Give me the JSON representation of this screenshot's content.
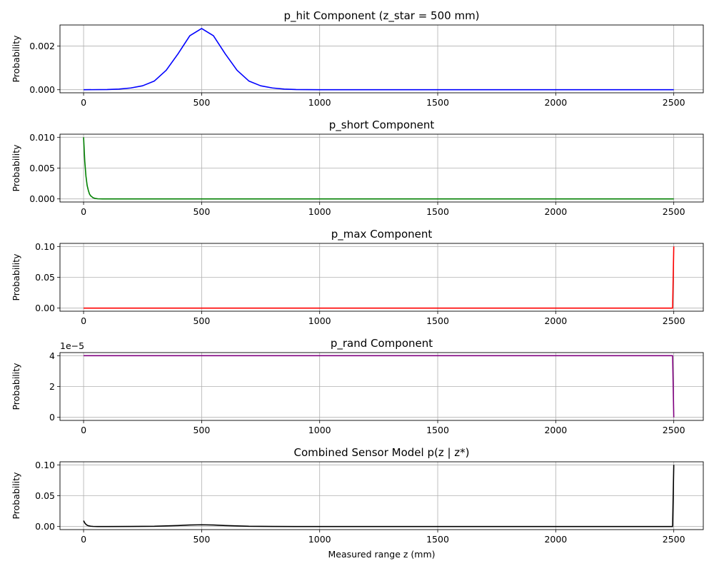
{
  "chart_data": [
    {
      "type": "line",
      "title": "p_hit Component (z_star = 500 mm)",
      "xlabel": "",
      "ylabel": "Probability",
      "xlim": [
        -100,
        2625
      ],
      "ylim": [
        -0.00014,
        0.00296
      ],
      "xticks": [
        0,
        500,
        1000,
        1500,
        2000,
        2500
      ],
      "yticks": [
        0,
        0.002
      ],
      "ytick_labels": [
        "0.000",
        "0.002"
      ],
      "offset_text": "",
      "grid": true,
      "color": "#0000ff",
      "series": [
        {
          "x": [
            0,
            100,
            150,
            200,
            250,
            300,
            350,
            400,
            450,
            500,
            550,
            600,
            650,
            700,
            750,
            800,
            850,
            900,
            1000,
            1500,
            2000,
            2500
          ],
          "y": [
            0,
            1e-05,
            3e-05,
            8e-05,
            0.00018,
            0.0004,
            0.00089,
            0.00164,
            0.00247,
            0.0028,
            0.00247,
            0.00164,
            0.00089,
            0.0004,
            0.00018,
            8e-05,
            3e-05,
            1e-05,
            0,
            0,
            0,
            0
          ]
        }
      ]
    },
    {
      "type": "line",
      "title": "p_short Component",
      "xlabel": "",
      "ylabel": "Probability",
      "xlim": [
        -100,
        2625
      ],
      "ylim": [
        -0.0005,
        0.0105
      ],
      "xticks": [
        0,
        500,
        1000,
        1500,
        2000,
        2500
      ],
      "yticks": [
        0,
        0.005,
        0.01
      ],
      "ytick_labels": [
        "0.000",
        "0.005",
        "0.010"
      ],
      "offset_text": "",
      "grid": true,
      "color": "#008000",
      "series": [
        {
          "x": [
            0,
            5,
            10,
            15,
            20,
            25,
            30,
            40,
            50,
            60,
            80,
            100,
            500,
            1000,
            1500,
            2000,
            2500
          ],
          "y": [
            0.01,
            0.0061,
            0.0037,
            0.0022,
            0.0014,
            0.0008,
            0.0005,
            0.0002,
            7e-05,
            2e-05,
            0,
            0,
            0,
            0,
            0,
            0,
            0
          ]
        }
      ]
    },
    {
      "type": "line",
      "title": "p_max Component",
      "xlabel": "",
      "ylabel": "Probability",
      "xlim": [
        -100,
        2625
      ],
      "ylim": [
        -0.005,
        0.105
      ],
      "xticks": [
        0,
        500,
        1000,
        1500,
        2000,
        2500
      ],
      "yticks": [
        0,
        0.05,
        0.1
      ],
      "ytick_labels": [
        "0.00",
        "0.05",
        "0.10"
      ],
      "offset_text": "",
      "grid": true,
      "color": "#ff0000",
      "series": [
        {
          "x": [
            0,
            500,
            1000,
            1500,
            2000,
            2495,
            2500
          ],
          "y": [
            0,
            0,
            0,
            0,
            0,
            0,
            0.1
          ]
        }
      ]
    },
    {
      "type": "line",
      "title": "p_rand Component",
      "xlabel": "",
      "ylabel": "Probability",
      "xlim": [
        -100,
        2625
      ],
      "ylim": [
        -0.2,
        4.2
      ],
      "xticks": [
        0,
        500,
        1000,
        1500,
        2000,
        2500
      ],
      "yticks": [
        0,
        2,
        4
      ],
      "ytick_labels": [
        "0",
        "2",
        "4"
      ],
      "offset_text": "1e−5",
      "grid": true,
      "color": "#800080",
      "series": [
        {
          "x": [
            0,
            500,
            1000,
            1500,
            2000,
            2495,
            2500
          ],
          "y": [
            4,
            4,
            4,
            4,
            4,
            4,
            0
          ]
        }
      ]
    },
    {
      "type": "line",
      "title": "Combined Sensor Model p(z | z*)",
      "xlabel": "Measured range z (mm)",
      "ylabel": "Probability",
      "xlim": [
        -100,
        2625
      ],
      "ylim": [
        -0.005,
        0.105
      ],
      "xticks": [
        0,
        500,
        1000,
        1500,
        2000,
        2500
      ],
      "yticks": [
        0,
        0.05,
        0.1
      ],
      "ytick_labels": [
        "0.00",
        "0.05",
        "0.10"
      ],
      "offset_text": "",
      "grid": true,
      "color": "#000000",
      "series": [
        {
          "x": [
            0,
            5,
            10,
            15,
            20,
            30,
            40,
            60,
            100,
            200,
            300,
            400,
            450,
            500,
            550,
            600,
            700,
            800,
            900,
            1000,
            1500,
            2000,
            2495,
            2500
          ],
          "y": [
            0.0095,
            0.0058,
            0.0035,
            0.0021,
            0.0013,
            0.0005,
            0.0002,
            5e-05,
            1e-05,
            8e-05,
            0.0004,
            0.0016,
            0.0025,
            0.0028,
            0.0025,
            0.0016,
            0.0004,
            8e-05,
            1e-05,
            0,
            0,
            0,
            0,
            0.1
          ]
        }
      ]
    }
  ]
}
